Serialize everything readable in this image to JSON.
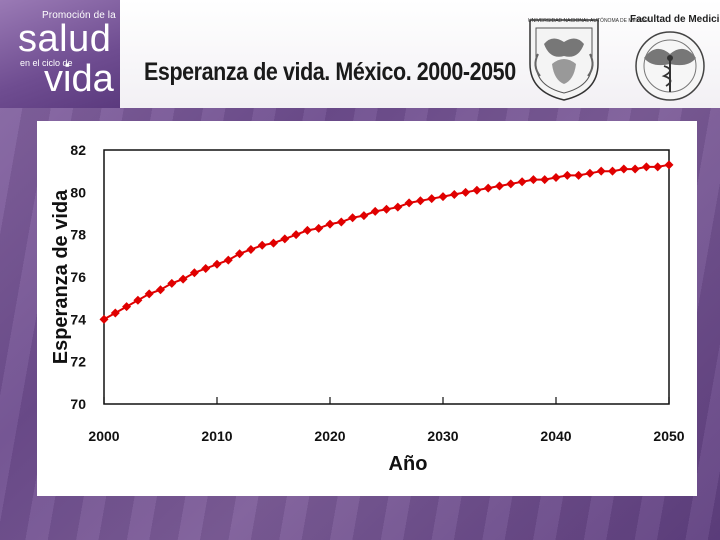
{
  "brand": {
    "line1": "Promoción de la",
    "line2": "salud",
    "line3": "en el ciclo de",
    "line4": "vida"
  },
  "header": {
    "title": "Esperanza de vida. México. 2000-2050",
    "unam_label": "UNIVERSIDAD NACIONAL AUTÓNOMA DE MÉXICO",
    "faculty_label": "Facultad de Medicina"
  },
  "colors": {
    "series": "#e00000",
    "background": "#7a5a98"
  },
  "chart_data": {
    "type": "line",
    "title": "",
    "xlabel": "Año",
    "ylabel": "Esperanza de vida",
    "xlim": [
      2000,
      2050
    ],
    "ylim": [
      70,
      82
    ],
    "xticks": [
      "2000",
      "2010",
      "2020",
      "2030",
      "2040",
      "2050"
    ],
    "yticks": [
      "70",
      "72",
      "74",
      "76",
      "78",
      "80",
      "82"
    ],
    "grid": false,
    "legend": "none",
    "marker": "diamond",
    "series": [
      {
        "x": [
          2000,
          2001,
          2002,
          2003,
          2004,
          2005,
          2006,
          2007,
          2008,
          2009,
          2010,
          2011,
          2012,
          2013,
          2014,
          2015,
          2016,
          2017,
          2018,
          2019,
          2020,
          2021,
          2022,
          2023,
          2024,
          2025,
          2026,
          2027,
          2028,
          2029,
          2030,
          2031,
          2032,
          2033,
          2034,
          2035,
          2036,
          2037,
          2038,
          2039,
          2040,
          2041,
          2042,
          2043,
          2044,
          2045,
          2046,
          2047,
          2048,
          2049,
          2050
        ],
        "values": [
          74.0,
          74.3,
          74.6,
          74.9,
          75.2,
          75.4,
          75.7,
          75.9,
          76.2,
          76.4,
          76.6,
          76.8,
          77.1,
          77.3,
          77.5,
          77.6,
          77.8,
          78.0,
          78.2,
          78.3,
          78.5,
          78.6,
          78.8,
          78.9,
          79.1,
          79.2,
          79.3,
          79.5,
          79.6,
          79.7,
          79.8,
          79.9,
          80.0,
          80.1,
          80.2,
          80.3,
          80.4,
          80.5,
          80.6,
          80.6,
          80.7,
          80.8,
          80.8,
          80.9,
          81.0,
          81.0,
          81.1,
          81.1,
          81.2,
          81.2,
          81.3
        ]
      }
    ]
  }
}
